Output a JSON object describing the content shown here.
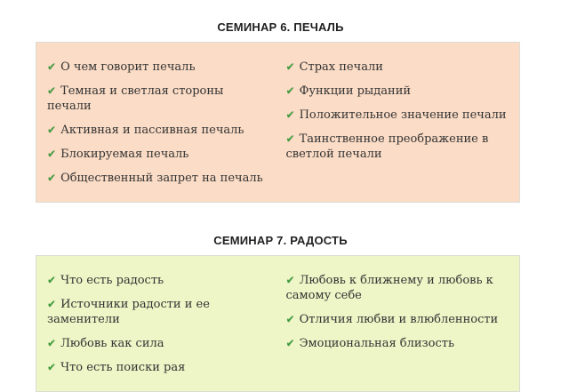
{
  "colors": {
    "page_background": "#ffffff",
    "panel_border": "#dcdcd4",
    "title_text": "#1f1f1f",
    "body_text": "#333333",
    "check_green": "#3d9c3d"
  },
  "icons": {
    "check": "✔"
  },
  "sections": [
    {
      "id": "seminar-6",
      "title": "СЕМИНАР 6. ПЕЧАЛЬ",
      "panel_bg": "#fbdcc6",
      "columns": [
        {
          "items": [
            "О чем говорит печаль",
            "Темная и светлая стороны печали",
            "Активная и пассивная печаль",
            "Блокируемая печаль",
            "Общественный запрет на печаль"
          ]
        },
        {
          "items": [
            "Страх печали",
            "Функции рыданий",
            "Положительное значение печали",
            "Таинственное преображение в светлой печали"
          ]
        }
      ]
    },
    {
      "id": "seminar-7",
      "title": "СЕМИНАР 7. РАДОСТЬ",
      "panel_bg": "#eef5c6",
      "columns": [
        {
          "items": [
            "Что есть радость",
            "Источники радости и ее заменители",
            "Любовь как сила",
            "Что есть поиски рая"
          ]
        },
        {
          "items": [
            "Любовь к ближнему и любовь к самому себе",
            "Отличия любви и влюбленности",
            "Эмоциональная близость"
          ]
        }
      ]
    }
  ]
}
